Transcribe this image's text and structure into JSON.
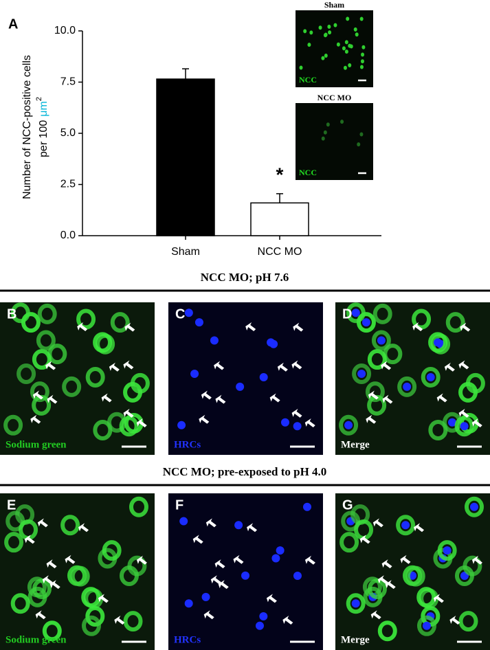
{
  "chart_data": {
    "type": "bar",
    "panel_label": "A",
    "ylabel_lines": [
      "Number of NCC-positive cells",
      "per 100"
    ],
    "ylabel_unit": "μm",
    "ylabel_unit_power": "2",
    "categories": [
      "Sham",
      "NCC MO"
    ],
    "values": [
      7.65,
      1.6
    ],
    "errors": [
      0.5,
      0.45
    ],
    "colors": [
      "#000000",
      "#ffffff"
    ],
    "ylim": [
      0,
      10
    ],
    "yticks": [
      {
        "value": 0,
        "label": "0.0"
      },
      2.5,
      {
        "value": 5,
        "label": "5.0"
      },
      7.5,
      {
        "value": 10,
        "label": "10.0"
      }
    ],
    "annotations": [
      {
        "text": "*",
        "category": "NCC MO"
      }
    ],
    "insets": [
      {
        "title": "Sham",
        "stain": "NCC"
      },
      {
        "title": "NCC MO",
        "stain": "NCC"
      }
    ]
  },
  "figure": {
    "sections": [
      {
        "title": "NCC MO; pH 7.6",
        "panels": [
          {
            "letter": "B",
            "label": "Sodium green"
          },
          {
            "letter": "C",
            "label": "HRCs"
          },
          {
            "letter": "D",
            "label": "Merge"
          }
        ]
      },
      {
        "title": "NCC MO; pre-exposed to pH 4.0",
        "panels": [
          {
            "letter": "E",
            "label": "Sodium green"
          },
          {
            "letter": "F",
            "label": "HRCs"
          },
          {
            "letter": "G",
            "label": "Merge"
          }
        ]
      }
    ]
  }
}
